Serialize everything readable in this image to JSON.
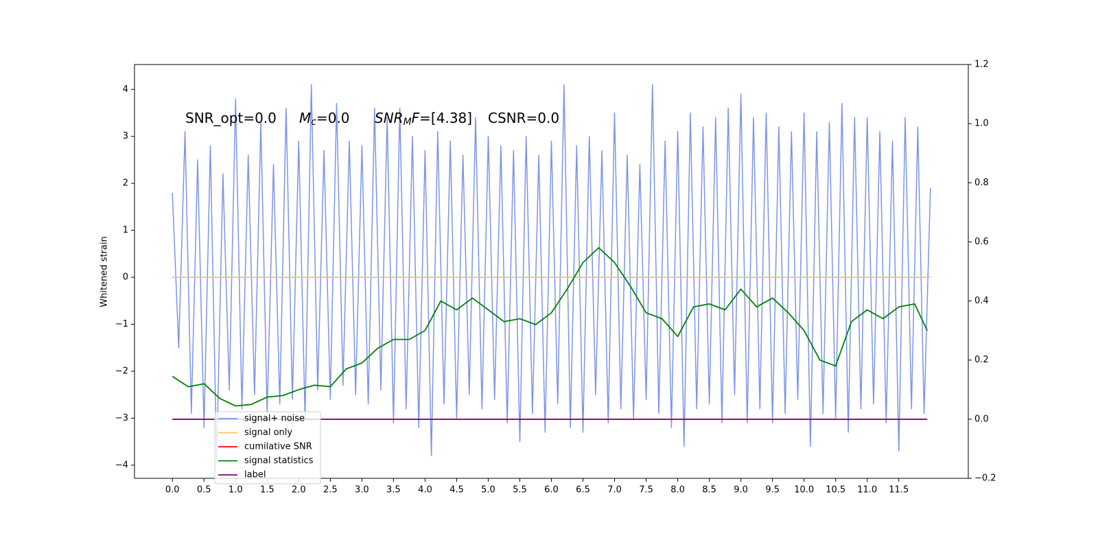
{
  "chart_data": {
    "type": "line",
    "ylabel": "Whitened strain",
    "annotations": [
      {
        "text": "SNR_opt=0.0"
      },
      {
        "italic": "M",
        "sub": "c",
        "text": "=0.0"
      },
      {
        "italic": "SNR",
        "sub": "M",
        "italic_after": "F",
        "text": "=[4.38]"
      },
      {
        "text": "CSNR=0.0"
      }
    ],
    "xlim": [
      -0.6,
      12.6
    ],
    "ylim": [
      -4.28,
      4.53
    ],
    "y2lim": [
      -0.2,
      1.2
    ],
    "xticks": [
      {
        "value": 0,
        "label": "0.0"
      },
      {
        "value": 0.5,
        "label": "0.5"
      },
      {
        "value": 1,
        "label": "1.0"
      },
      {
        "value": 1.5,
        "label": "1.5"
      },
      {
        "value": 2,
        "label": "2.0"
      },
      {
        "value": 2.5,
        "label": "2.5"
      },
      {
        "value": 3,
        "label": "3.0"
      },
      {
        "value": 3.5,
        "label": "3.5"
      },
      {
        "value": 4,
        "label": "4.0"
      },
      {
        "value": 4.5,
        "label": "4.5"
      },
      {
        "value": 5,
        "label": "5.0"
      },
      {
        "value": 5.5,
        "label": "5.5"
      },
      {
        "value": 6,
        "label": "6.0"
      },
      {
        "value": 6.5,
        "label": "6.5"
      },
      {
        "value": 7,
        "label": "7.0"
      },
      {
        "value": 7.5,
        "label": "7.5"
      },
      {
        "value": 8,
        "label": "8.0"
      },
      {
        "value": 8.5,
        "label": "8.5"
      },
      {
        "value": 9,
        "label": "9.0"
      },
      {
        "value": 9.5,
        "label": "9.5"
      },
      {
        "value": 10,
        "label": "10.0"
      },
      {
        "value": 10.5,
        "label": "10.5"
      },
      {
        "value": 11,
        "label": "11.0"
      },
      {
        "value": 11.5,
        "label": "11.5"
      }
    ],
    "yticks": [
      {
        "value": -4,
        "label": "−4"
      },
      {
        "value": -3,
        "label": "−3"
      },
      {
        "value": -2,
        "label": "−2"
      },
      {
        "value": -1,
        "label": "−1"
      },
      0,
      1,
      2,
      3,
      4
    ],
    "y2ticks": [
      {
        "value": -0.2,
        "label": "−0.2"
      },
      {
        "value": 0,
        "label": "0.0"
      },
      {
        "value": 0.2,
        "label": "0.2"
      },
      {
        "value": 0.4,
        "label": "0.4"
      },
      {
        "value": 0.6,
        "label": "0.6"
      },
      {
        "value": 0.8,
        "label": "0.8"
      },
      {
        "value": 1,
        "label": "1.0"
      },
      {
        "value": 1.2,
        "label": "1.2"
      }
    ],
    "legend": "lower left",
    "series": [
      {
        "name": "signal+ noise",
        "color": "#7b94e8",
        "x": [
          0,
          0.1,
          0.2,
          0.3,
          0.4,
          0.5,
          0.6,
          0.7,
          0.8,
          0.9,
          1,
          1.1,
          1.2,
          1.3,
          1.4,
          1.5,
          1.6,
          1.7,
          1.8,
          1.9,
          2,
          2.1,
          2.2,
          2.3,
          2.4,
          2.5,
          2.6,
          2.7,
          2.8,
          2.9,
          3,
          3.1,
          3.2,
          3.3,
          3.4,
          3.5,
          3.6,
          3.7,
          3.8,
          3.9,
          4,
          4.1,
          4.2,
          4.3,
          4.4,
          4.5,
          4.6,
          4.7,
          4.8,
          4.9,
          5,
          5.1,
          5.2,
          5.3,
          5.4,
          5.5,
          5.6,
          5.7,
          5.8,
          5.9,
          6,
          6.1,
          6.2,
          6.3,
          6.4,
          6.5,
          6.6,
          6.7,
          6.8,
          6.9,
          7,
          7.1,
          7.2,
          7.3,
          7.4,
          7.5,
          7.6,
          7.7,
          7.8,
          7.9,
          8,
          8.1,
          8.2,
          8.3,
          8.4,
          8.5,
          8.6,
          8.7,
          8.8,
          8.9,
          9,
          9.1,
          9.2,
          9.3,
          9.4,
          9.5,
          9.6,
          9.7,
          9.8,
          9.9,
          10,
          10.1,
          10.2,
          10.3,
          10.4,
          10.5,
          10.6,
          10.7,
          10.8,
          10.9,
          11,
          11.1,
          11.2,
          11.3,
          11.4,
          11.5,
          11.6,
          11.7,
          11.8,
          11.9,
          12
        ],
        "values": [
          1.8,
          -1.5,
          3.1,
          -2.9,
          2.5,
          -3.2,
          2.8,
          -3.9,
          2.2,
          -2.4,
          3.8,
          -2.8,
          2.6,
          -2.5,
          3.3,
          -2.9,
          2.4,
          -2.7,
          3.6,
          -2.6,
          2.9,
          -3.0,
          4.1,
          -2.4,
          2.7,
          -2.6,
          3.7,
          -2.3,
          2.9,
          -2.5,
          2.8,
          -2.7,
          3.6,
          -2.4,
          3.4,
          -3.1,
          3.6,
          -2.8,
          3.0,
          -3.2,
          2.7,
          -3.8,
          3.1,
          -2.7,
          2.9,
          -3.0,
          2.6,
          -2.5,
          3.4,
          -2.8,
          3.0,
          -2.6,
          2.8,
          -3.1,
          2.7,
          -3.5,
          3.0,
          -2.9,
          2.6,
          -3.3,
          2.9,
          -2.7,
          4.1,
          -3.2,
          2.8,
          -3.3,
          3.0,
          -2.5,
          2.7,
          -3.1,
          3.5,
          -2.8,
          2.6,
          -3.0,
          2.4,
          -2.6,
          4.1,
          -2.9,
          2.9,
          -3.2,
          3.1,
          -3.6,
          3.5,
          -2.8,
          3.2,
          -2.7,
          3.4,
          -3.1,
          3.6,
          -2.5,
          3.9,
          -3.1,
          3.4,
          -2.8,
          3.5,
          -3.1,
          3.2,
          -2.9,
          3.1,
          -2.6,
          3.5,
          -3.6,
          3.1,
          -2.9,
          3.3,
          -3.0,
          3.7,
          -3.3,
          3.4,
          -2.8,
          3.4,
          -2.7,
          3.1,
          -3.1,
          2.9,
          -3.7,
          3.4,
          -2.8,
          3.2,
          -2.9,
          1.9
        ]
      },
      {
        "name": "signal only",
        "color": "#ffbf66",
        "x": [
          0,
          12
        ],
        "values": [
          0,
          0
        ]
      },
      {
        "name": "cumilative SNR",
        "color": "#ff0000",
        "axis": "y2",
        "x": [
          0,
          11.95
        ],
        "values": [
          0,
          0
        ]
      },
      {
        "name": "signal statistics",
        "color": "#008000",
        "axis": "y2",
        "x": [
          0,
          0.25,
          0.5,
          0.75,
          1,
          1.25,
          1.5,
          1.75,
          2,
          2.25,
          2.5,
          2.75,
          3,
          3.25,
          3.5,
          3.75,
          4,
          4.25,
          4.5,
          4.75,
          5,
          5.25,
          5.5,
          5.75,
          6,
          6.25,
          6.5,
          6.75,
          7,
          7.25,
          7.5,
          7.75,
          8,
          8.25,
          8.5,
          8.75,
          9,
          9.25,
          9.5,
          9.75,
          10,
          10.25,
          10.5,
          10.75,
          11,
          11.25,
          11.5,
          11.75,
          11.95
        ],
        "values": [
          0.145,
          0.11,
          0.12,
          0.07,
          0.045,
          0.05,
          0.075,
          0.08,
          0.1,
          0.115,
          0.11,
          0.17,
          0.19,
          0.24,
          0.27,
          0.27,
          0.3,
          0.4,
          0.37,
          0.41,
          0.37,
          0.33,
          0.34,
          0.32,
          0.36,
          0.44,
          0.53,
          0.58,
          0.53,
          0.45,
          0.36,
          0.34,
          0.28,
          0.38,
          0.39,
          0.37,
          0.44,
          0.38,
          0.41,
          0.36,
          0.3,
          0.2,
          0.18,
          0.33,
          0.37,
          0.34,
          0.38,
          0.39,
          0.3
        ]
      },
      {
        "name": "label",
        "color": "#800080",
        "axis": "y2",
        "x": [
          0,
          11.95
        ],
        "values": [
          0,
          0
        ]
      }
    ]
  }
}
